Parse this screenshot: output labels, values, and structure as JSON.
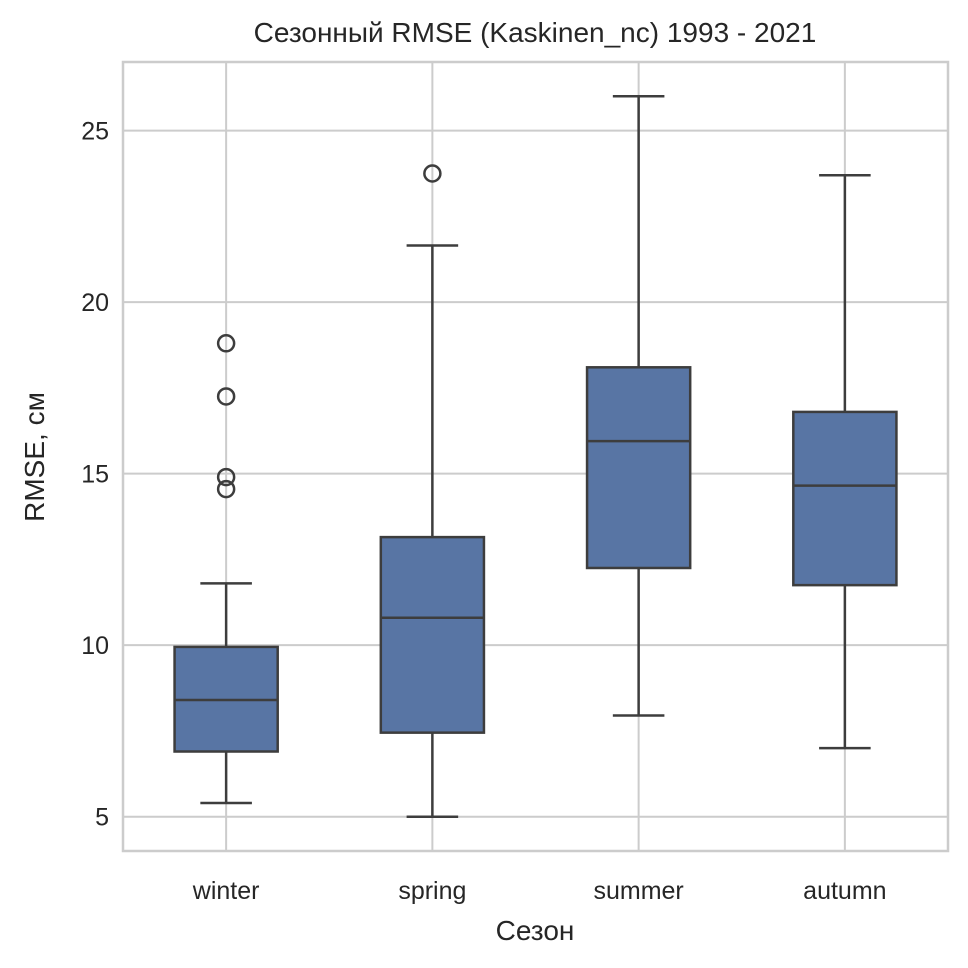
{
  "chart_data": {
    "type": "box",
    "title": "Сезонный RMSE (Kaskinen_nc) 1993 - 2021",
    "xlabel": "Сезон",
    "ylabel": "RMSE, см",
    "ylim": [
      4.0,
      27.0
    ],
    "yticks": [
      5,
      10,
      15,
      20,
      25
    ],
    "grid": true,
    "color": "#5875a4",
    "edge_color": "#3d3d3d",
    "categories": [
      "winter",
      "spring",
      "summer",
      "autumn"
    ],
    "boxes": [
      {
        "category": "winter",
        "whislo": 5.4,
        "q1": 6.9,
        "med": 8.4,
        "q3": 9.95,
        "whishi": 11.8,
        "fliers": [
          14.55,
          14.9,
          17.25,
          18.8
        ]
      },
      {
        "category": "spring",
        "whislo": 5.0,
        "q1": 7.45,
        "med": 10.8,
        "q3": 13.15,
        "whishi": 21.65,
        "fliers": [
          23.75
        ]
      },
      {
        "category": "summer",
        "whislo": 7.95,
        "q1": 12.25,
        "med": 15.95,
        "q3": 18.1,
        "whishi": 26.0,
        "fliers": []
      },
      {
        "category": "autumn",
        "whislo": 7.0,
        "q1": 11.75,
        "med": 14.65,
        "q3": 16.8,
        "whishi": 23.7,
        "fliers": []
      }
    ]
  }
}
